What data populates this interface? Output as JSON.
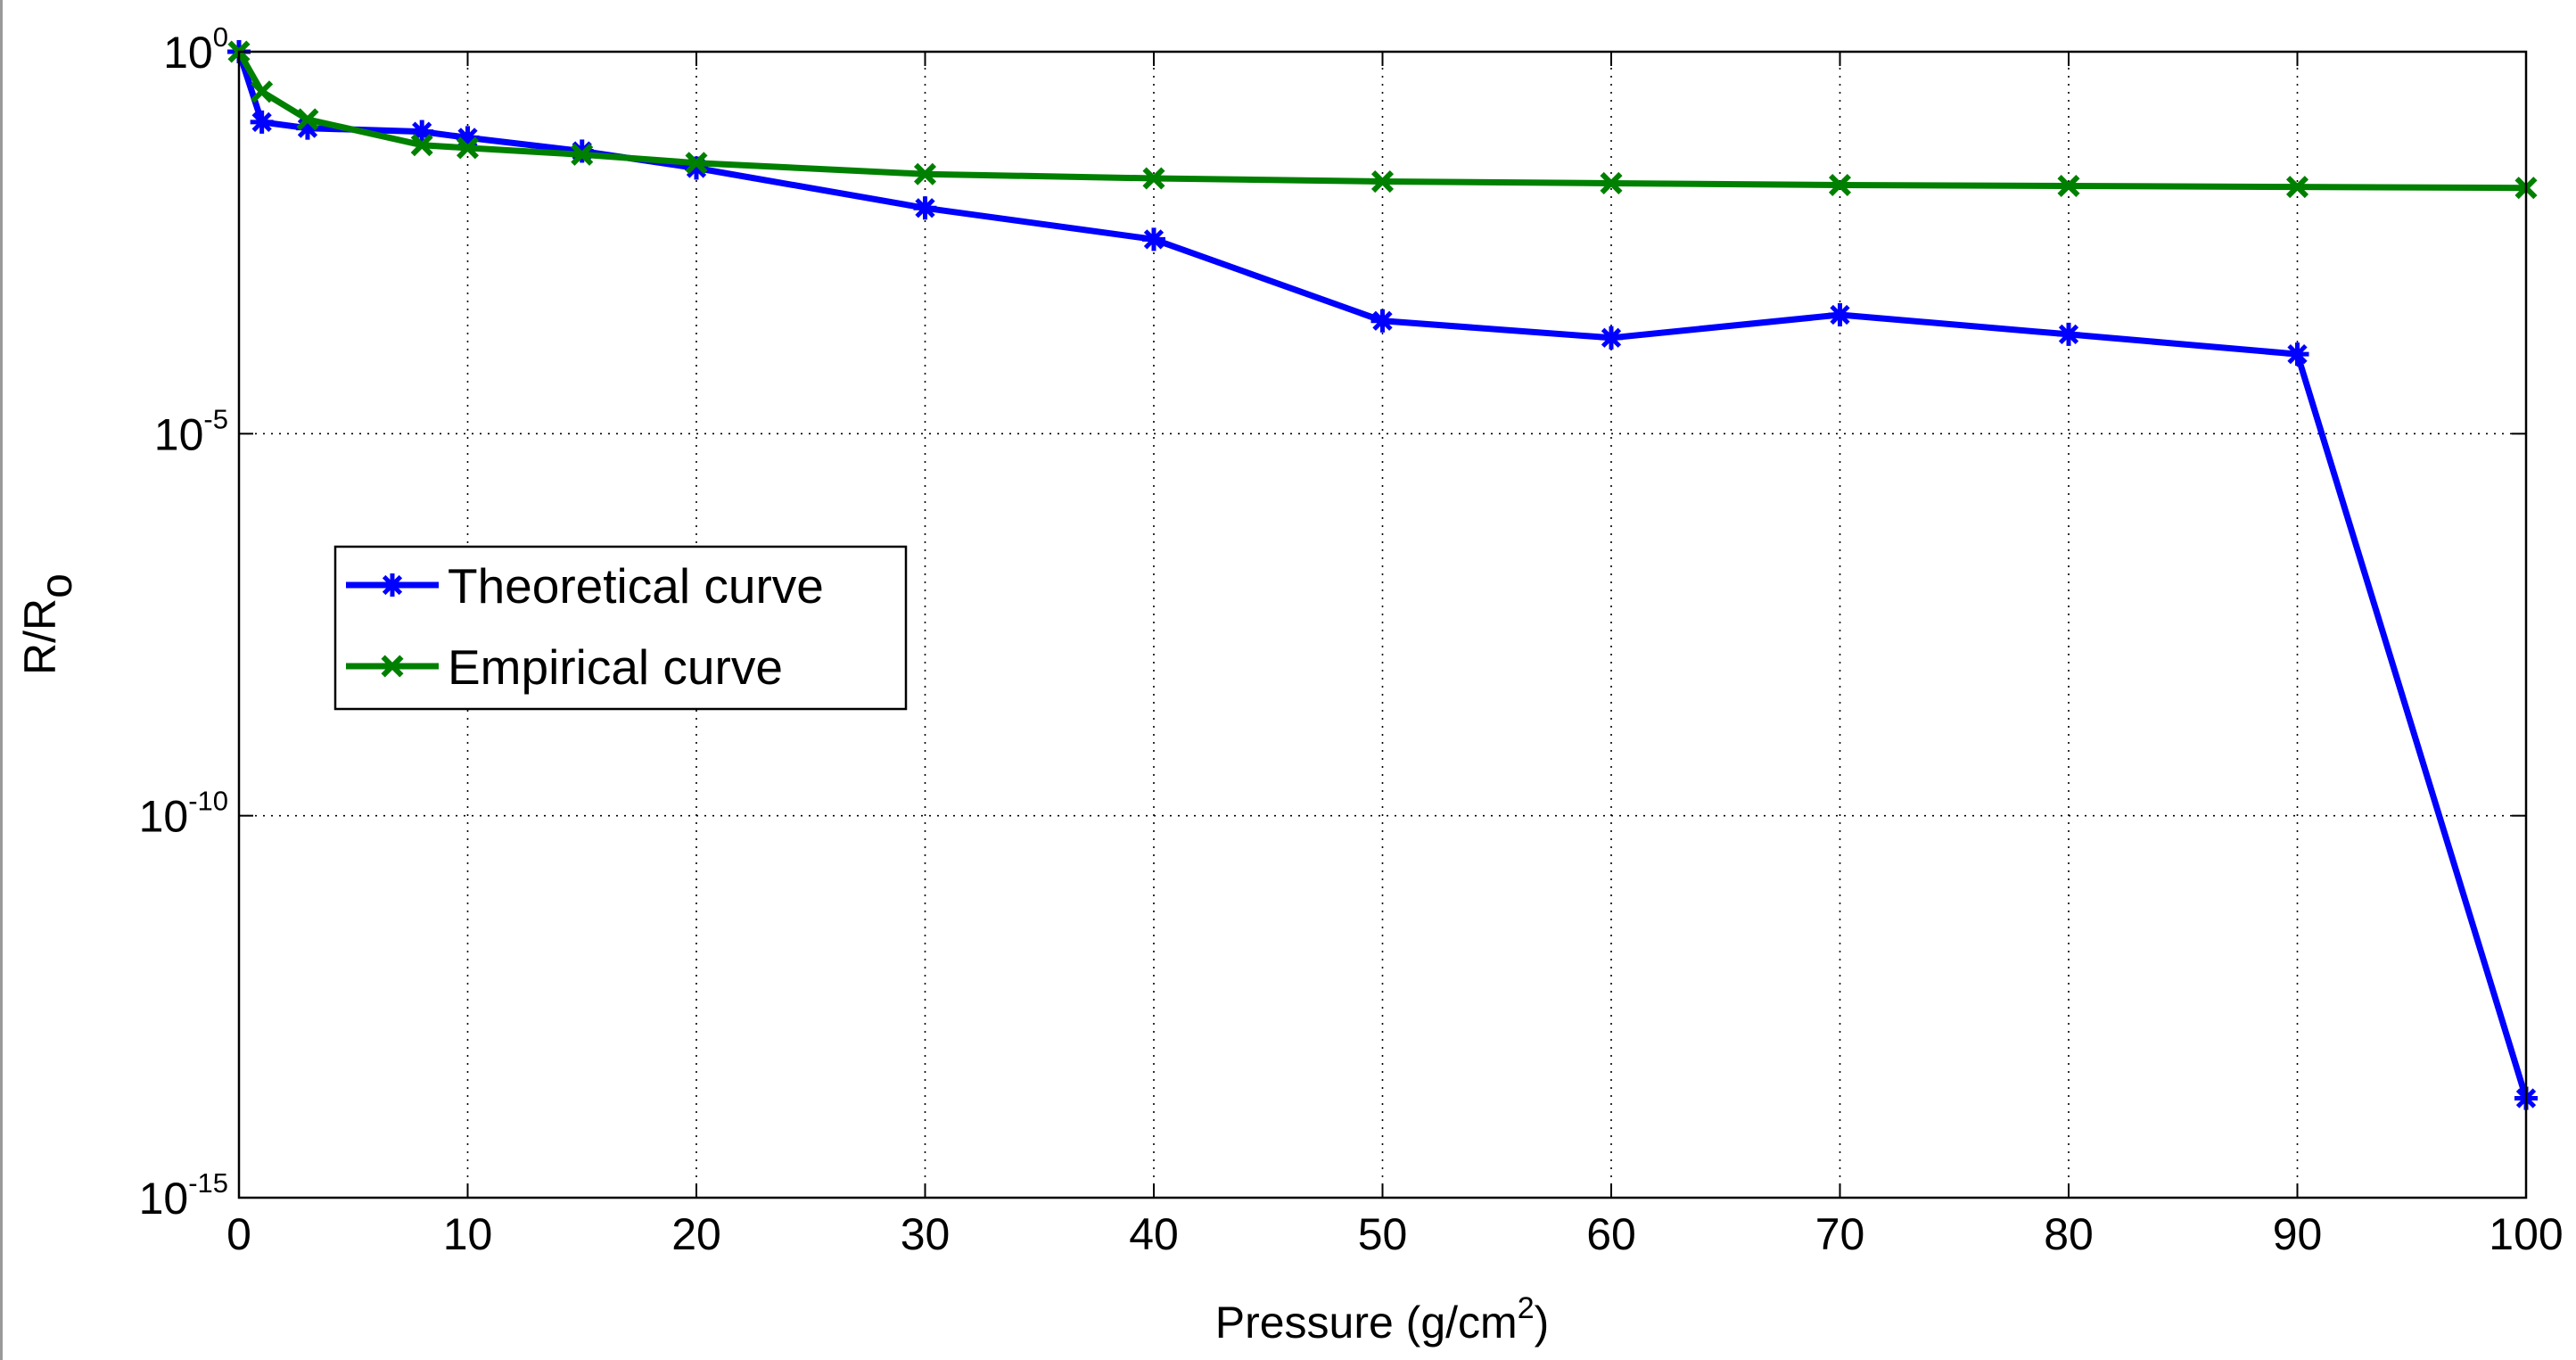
{
  "chart_data": {
    "type": "line",
    "yscale": "log",
    "xlabel": "Pressure (g/cm",
    "xlabel_sup": "2",
    "xlabel_end": ")",
    "ylabel": "R/R",
    "ylabel_sub": "o",
    "xlim": [
      0,
      100
    ],
    "ylim_exp": [
      -15,
      0
    ],
    "x_ticks": [
      "0",
      "10",
      "20",
      "30",
      "40",
      "50",
      "60",
      "70",
      "80",
      "90",
      "100"
    ],
    "y_ticks": [
      {
        "base": "10",
        "exp": "0"
      },
      {
        "base": "10",
        "exp": "-5"
      },
      {
        "base": "10",
        "exp": "-10"
      },
      {
        "base": "10",
        "exp": "-15"
      }
    ],
    "grid": true,
    "legend_position": "middle-left",
    "series": [
      {
        "name": "Theoretical curve",
        "color": "#0000ff",
        "marker": "asterisk",
        "x": [
          0,
          1,
          3,
          8,
          10,
          15,
          20,
          30,
          40,
          50,
          60,
          70,
          80,
          90,
          100
        ],
        "y": [
          1,
          0.12,
          0.1,
          0.09,
          0.075,
          0.05,
          0.03,
          0.009,
          0.0035,
          0.0003,
          0.00018,
          0.00036,
          0.0002,
          0.00011,
          2e-14
        ]
      },
      {
        "name": "Empirical curve",
        "color": "#008000",
        "marker": "x",
        "x": [
          0,
          1,
          3,
          8,
          10,
          15,
          20,
          30,
          40,
          50,
          60,
          70,
          80,
          90,
          100
        ],
        "y": [
          1,
          0.3,
          0.13,
          0.06,
          0.055,
          0.045,
          0.035,
          0.025,
          0.022,
          0.02,
          0.019,
          0.018,
          0.0175,
          0.017,
          0.0165
        ]
      }
    ]
  }
}
